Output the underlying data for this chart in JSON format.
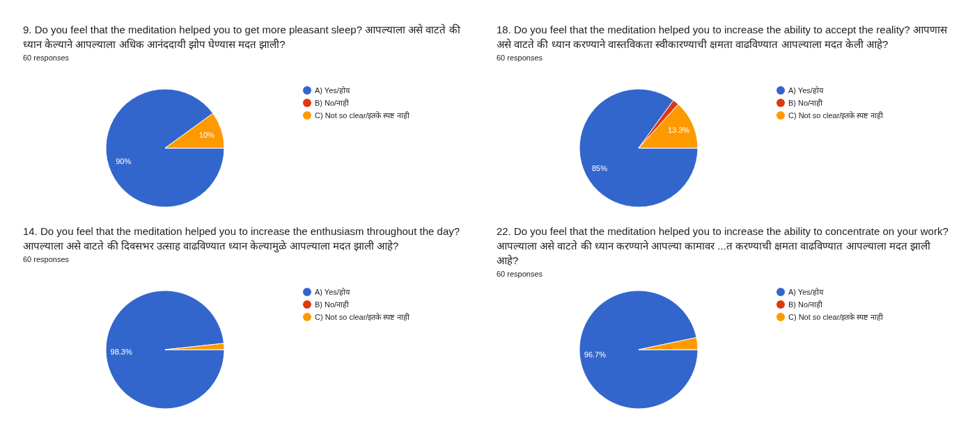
{
  "chart_data": [
    {
      "type": "pie",
      "title": "9. Do you feel that the meditation helped you to get more pleasant sleep? आपल्याला असे वाटते की ध्यान केल्याने आपल्याला अधिक आनंददायी झोप घेण्यास मदत झाली?",
      "subtitle": "60 responses",
      "categories": [
        "A) Yes/होय",
        "B) No/नाही",
        "C) Not so clear/इतके स्पष्ट नाही"
      ],
      "values": [
        90,
        0,
        10
      ],
      "colors": [
        "#3366cc",
        "#dc3912",
        "#ff9900"
      ],
      "value_labels": [
        "90%",
        null,
        "10%"
      ],
      "legend": "right"
    },
    {
      "type": "pie",
      "title": "18. Do you feel that the meditation helped you to increase the ability to accept the reality? आपणास असे वाटते की ध्यान करण्याने वास्तविकता स्वीकारण्याची क्षमता वाढविण्यात आपल्याला मदत केली आहे?",
      "subtitle": "60 responses",
      "categories": [
        "A) Yes/होय",
        "B) No/नाही",
        "C) Not so clear/इतके स्पष्ट नाही"
      ],
      "values": [
        85,
        1.7,
        13.3
      ],
      "colors": [
        "#3366cc",
        "#dc3912",
        "#ff9900"
      ],
      "value_labels": [
        "85%",
        null,
        "13.3%"
      ],
      "legend": "right"
    },
    {
      "type": "pie",
      "title": "14. Do you feel that the meditation helped you to increase the enthusiasm throughout the day? आपल्याला असे वाटते की दिवसभर उत्साह वाढविण्यात ध्यान केल्यामुळे आपल्याला मदत झाली आहे?",
      "subtitle": "60 responses",
      "categories": [
        "A) Yes/होय",
        "B) No/नाही",
        "C) Not so clear/इतके स्पष्ट नाही"
      ],
      "values": [
        98.3,
        0,
        1.7
      ],
      "colors": [
        "#3366cc",
        "#dc3912",
        "#ff9900"
      ],
      "value_labels": [
        "98.3%",
        null,
        null
      ],
      "legend": "right"
    },
    {
      "type": "pie",
      "title": "22. Do you feel that the meditation helped you to increase the ability to concentrate on your work? आपल्याला असे वाटते की ध्यान करण्याने आपल्या कामावर ...त करण्याची क्षमता वाढविण्यात आपल्याला मदत झाली आहे?",
      "subtitle": "60 responses",
      "categories": [
        "A) Yes/होय",
        "B) No/नाही",
        "C) Not so clear/इतके स्पष्ट नाही"
      ],
      "values": [
        96.7,
        0,
        3.3
      ],
      "colors": [
        "#3366cc",
        "#dc3912",
        "#ff9900"
      ],
      "value_labels": [
        "96.7%",
        null,
        null
      ],
      "legend": "right"
    }
  ]
}
